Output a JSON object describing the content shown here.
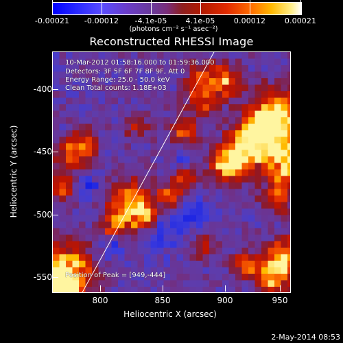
{
  "colorbar": {
    "labels": [
      "-0.00021",
      "-0.00012",
      "-4.1e-05",
      "4.1e-05",
      "0.00012",
      "0.00021"
    ],
    "units": "(photons cm⁻² s⁻¹ asec⁻²)",
    "colors": {
      "low": "#0000ff",
      "mid": "#8d1f20",
      "high": "#ffffff"
    }
  },
  "title": "Reconstructed RHESSI Image",
  "overlay": {
    "line1": "10-Mar-2012 01:58:16.000 to 01:59:36.000",
    "line2": "Detectors: 3F 5F 6F 7F 8F 9F, Att 0",
    "line3": "Energy Range: 25.0 - 50.0 keV",
    "line4": "Clean      Total counts: 1.18E+03",
    "peak": "Position of Peak = [949,-444]"
  },
  "axes": {
    "ylabel": "Heliocentric Y (arcsec)",
    "xlabel": "Heliocentric X (arcsec)",
    "yticks": [
      "-400",
      "-450",
      "-500",
      "-550"
    ],
    "xticks": [
      "800",
      "850",
      "900",
      "950"
    ]
  },
  "footer": {
    "timestamp": "2-May-2014 08:53"
  }
}
